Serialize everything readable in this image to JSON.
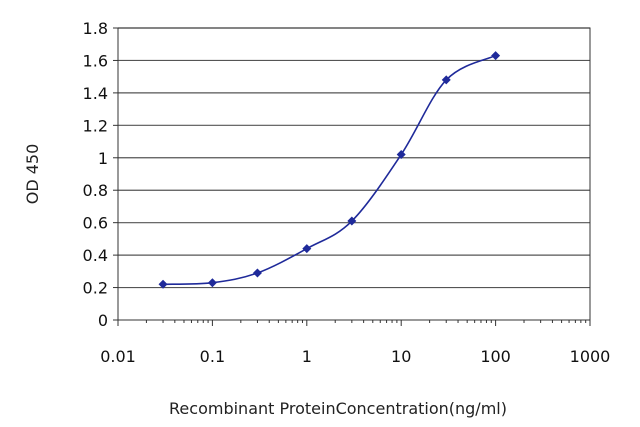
{
  "chart_data": {
    "type": "line",
    "xlabel": "Recombinant ProteinConcentration(ng/ml)",
    "ylabel": "OD 450",
    "x_scale": "log",
    "xlim": [
      0.01,
      1000
    ],
    "ylim": [
      0,
      1.8
    ],
    "x_ticks": [
      0.01,
      0.1,
      1,
      10,
      100,
      1000
    ],
    "x_tick_labels": [
      "0.01",
      "0.1",
      "1",
      "10",
      "100",
      "1000"
    ],
    "y_ticks": [
      0,
      0.2,
      0.4,
      0.6,
      0.8,
      1,
      1.2,
      1.4,
      1.6,
      1.8
    ],
    "y_tick_labels": [
      "0",
      "0.2",
      "0.4",
      "0.6",
      "0.8",
      "1",
      "1.2",
      "1.4",
      "1.6",
      "1.8"
    ],
    "grid": "horizontal",
    "legend": "none",
    "series": [
      {
        "x": [
          0.03,
          0.1,
          0.3,
          1,
          3,
          10,
          30,
          100
        ],
        "y": [
          0.22,
          0.23,
          0.29,
          0.44,
          0.61,
          1.02,
          1.48,
          1.63
        ],
        "color": "#1f2a9a",
        "marker": "diamond"
      }
    ]
  }
}
